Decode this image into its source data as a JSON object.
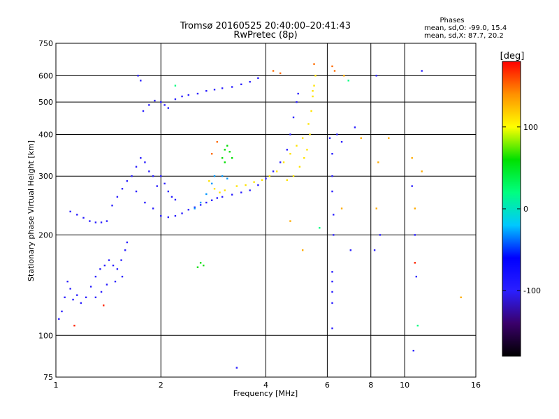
{
  "chart_data": {
    "type": "scatter",
    "title": "Tromsø 20160525 20:40:00–20:41:43",
    "subtitle": "RwPretec (8p)",
    "xlabel": "Frequency [MHz]",
    "ylabel": "Stationary phase Virtual Height [km]",
    "xscale": "log",
    "yscale": "log",
    "xlim": [
      1,
      16
    ],
    "ylim": [
      75,
      750
    ],
    "xticks": [
      1,
      2,
      4,
      6,
      8,
      10,
      16
    ],
    "yticks": [
      75,
      100,
      200,
      300,
      400,
      500,
      600,
      750
    ],
    "grid": true,
    "stats": {
      "heading": "Phases",
      "line_o": "mean, sd,O: -99.0, 15.4",
      "line_x": "mean, sd,X: 87.7, 20.2"
    },
    "colorbar": {
      "label": "[deg]",
      "range": [
        -180,
        180
      ],
      "ticks": [
        100,
        0,
        -100
      ],
      "colors": [
        "#000000",
        "#3a006a",
        "#2a1fff",
        "#0000ff",
        "#00c8ff",
        "#00ff80",
        "#00e000",
        "#ffff00",
        "#ff9000",
        "#ff0000"
      ]
    },
    "series": [
      {
        "phase": -100,
        "points": [
          [
            1.02,
            112
          ],
          [
            1.04,
            118
          ],
          [
            1.06,
            130
          ],
          [
            1.08,
            145
          ],
          [
            1.1,
            138
          ],
          [
            1.12,
            128
          ],
          [
            1.15,
            132
          ],
          [
            1.18,
            125
          ],
          [
            1.22,
            130
          ],
          [
            1.26,
            140
          ],
          [
            1.3,
            150
          ],
          [
            1.34,
            158
          ],
          [
            1.38,
            162
          ],
          [
            1.42,
            168
          ],
          [
            1.46,
            162
          ],
          [
            1.5,
            158
          ],
          [
            1.54,
            168
          ],
          [
            1.58,
            180
          ],
          [
            1.6,
            190
          ],
          [
            1.55,
            150
          ],
          [
            1.48,
            145
          ],
          [
            1.4,
            142
          ],
          [
            1.35,
            135
          ],
          [
            1.3,
            130
          ]
        ]
      },
      {
        "phase": -100,
        "points": [
          [
            1.1,
            235
          ],
          [
            1.15,
            230
          ],
          [
            1.2,
            225
          ],
          [
            1.25,
            220
          ],
          [
            1.3,
            218
          ],
          [
            1.35,
            218
          ],
          [
            1.4,
            220
          ],
          [
            1.45,
            245
          ],
          [
            1.5,
            260
          ],
          [
            1.55,
            275
          ],
          [
            1.6,
            290
          ],
          [
            1.65,
            300
          ],
          [
            1.7,
            320
          ],
          [
            1.75,
            340
          ],
          [
            1.8,
            330
          ],
          [
            1.85,
            310
          ],
          [
            1.9,
            300
          ],
          [
            1.95,
            280
          ],
          [
            2.0,
            300
          ],
          [
            2.05,
            285
          ],
          [
            2.1,
            270
          ],
          [
            2.15,
            260
          ],
          [
            2.2,
            255
          ],
          [
            1.8,
            250
          ],
          [
            1.9,
            240
          ],
          [
            1.7,
            270
          ]
        ]
      },
      {
        "phase": -100,
        "points": [
          [
            1.78,
            470
          ],
          [
            1.85,
            490
          ],
          [
            1.92,
            505
          ],
          [
            2.0,
            500
          ],
          [
            2.05,
            490
          ],
          [
            2.1,
            480
          ],
          [
            2.2,
            510
          ],
          [
            2.3,
            520
          ],
          [
            2.4,
            525
          ],
          [
            2.55,
            530
          ],
          [
            2.7,
            540
          ],
          [
            2.85,
            545
          ],
          [
            3.0,
            550
          ],
          [
            3.2,
            555
          ],
          [
            3.4,
            565
          ],
          [
            3.6,
            575
          ],
          [
            3.8,
            590
          ],
          [
            1.75,
            580
          ],
          [
            1.72,
            600
          ]
        ]
      },
      {
        "phase": -100,
        "points": [
          [
            2.0,
            228
          ],
          [
            2.1,
            226
          ],
          [
            2.2,
            228
          ],
          [
            2.3,
            232
          ],
          [
            2.4,
            238
          ],
          [
            2.5,
            242
          ],
          [
            2.6,
            246
          ],
          [
            2.7,
            250
          ],
          [
            2.8,
            254
          ],
          [
            2.9,
            258
          ],
          [
            3.0,
            260
          ],
          [
            3.2,
            264
          ],
          [
            3.4,
            268
          ],
          [
            3.6,
            272
          ],
          [
            3.8,
            282
          ],
          [
            4.0,
            295
          ],
          [
            4.2,
            310
          ],
          [
            4.4,
            330
          ],
          [
            4.6,
            360
          ],
          [
            4.7,
            400
          ],
          [
            4.8,
            450
          ],
          [
            4.9,
            500
          ],
          [
            4.95,
            530
          ]
        ]
      },
      {
        "phase": -30,
        "points": [
          [
            2.5,
            240
          ],
          [
            2.6,
            250
          ],
          [
            2.7,
            265
          ],
          [
            2.8,
            285
          ],
          [
            2.85,
            300
          ],
          [
            3.0,
            300
          ],
          [
            3.1,
            295
          ]
        ]
      },
      {
        "phase": 110,
        "points": [
          [
            2.75,
            290
          ],
          [
            2.85,
            275
          ],
          [
            2.95,
            268
          ],
          [
            3.05,
            272
          ],
          [
            3.3,
            280
          ],
          [
            3.5,
            282
          ],
          [
            3.7,
            288
          ],
          [
            3.9,
            292
          ],
          [
            4.1,
            300
          ],
          [
            4.3,
            310
          ],
          [
            4.5,
            330
          ],
          [
            4.7,
            350
          ],
          [
            4.9,
            370
          ],
          [
            5.1,
            390
          ],
          [
            5.3,
            430
          ],
          [
            5.4,
            470
          ],
          [
            5.45,
            520
          ],
          [
            5.5,
            560
          ],
          [
            5.55,
            600
          ],
          [
            5.45,
            540
          ],
          [
            5.35,
            400
          ],
          [
            5.25,
            360
          ],
          [
            5.15,
            340
          ],
          [
            5.0,
            320
          ],
          [
            4.8,
            300
          ],
          [
            4.6,
            292
          ]
        ]
      },
      {
        "phase": 60,
        "points": [
          [
            3.0,
            340
          ],
          [
            3.05,
            360
          ],
          [
            3.1,
            370
          ],
          [
            3.15,
            355
          ],
          [
            3.2,
            340
          ],
          [
            3.05,
            330
          ],
          [
            2.55,
            160
          ],
          [
            2.6,
            165
          ],
          [
            2.65,
            162
          ]
        ]
      },
      {
        "phase": 150,
        "points": [
          [
            2.8,
            350
          ],
          [
            2.9,
            380
          ],
          [
            4.2,
            620
          ],
          [
            4.4,
            610
          ],
          [
            5.5,
            650
          ],
          [
            6.2,
            640
          ],
          [
            6.3,
            620
          ]
        ]
      },
      {
        "phase": -100,
        "points": [
          [
            6.1,
            390
          ],
          [
            6.2,
            350
          ],
          [
            6.2,
            300
          ],
          [
            6.2,
            270
          ],
          [
            6.25,
            230
          ],
          [
            6.25,
            200
          ],
          [
            6.2,
            155
          ],
          [
            6.2,
            145
          ],
          [
            6.2,
            135
          ],
          [
            6.2,
            125
          ],
          [
            6.2,
            105
          ],
          [
            6.4,
            400
          ],
          [
            6.6,
            380
          ],
          [
            7.0,
            180
          ],
          [
            7.2,
            420
          ],
          [
            8.2,
            180
          ],
          [
            8.3,
            600
          ],
          [
            8.5,
            200
          ],
          [
            10.5,
            280
          ],
          [
            10.7,
            200
          ],
          [
            10.8,
            150
          ],
          [
            10.6,
            90
          ],
          [
            11.2,
            620
          ],
          [
            3.3,
            80
          ]
        ]
      },
      {
        "phase": 130,
        "points": [
          [
            6.6,
            240
          ],
          [
            6.7,
            600
          ],
          [
            7.5,
            390
          ],
          [
            8.3,
            240
          ],
          [
            8.4,
            330
          ],
          [
            9.0,
            390
          ],
          [
            10.5,
            340
          ],
          [
            10.7,
            240
          ],
          [
            11.2,
            310
          ],
          [
            14.5,
            130
          ],
          [
            5.1,
            180
          ],
          [
            4.7,
            220
          ]
        ]
      },
      {
        "phase": 170,
        "points": [
          [
            1.13,
            107
          ],
          [
            1.37,
            123
          ],
          [
            10.7,
            165
          ]
        ]
      },
      {
        "phase": 20,
        "points": [
          [
            10.9,
            107
          ],
          [
            5.7,
            210
          ],
          [
            6.9,
            580
          ],
          [
            2.2,
            560
          ]
        ]
      }
    ]
  }
}
